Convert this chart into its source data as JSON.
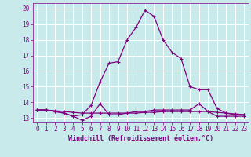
{
  "title": "",
  "xlabel": "Windchill (Refroidissement éolien,°C)",
  "ylabel": "",
  "background_color": "#c8eaea",
  "grid_color": "#ffffff",
  "line_color": "#800080",
  "x_hours": [
    0,
    1,
    2,
    3,
    4,
    5,
    6,
    7,
    8,
    9,
    10,
    11,
    12,
    13,
    14,
    15,
    16,
    17,
    18,
    19,
    20,
    21,
    22,
    23
  ],
  "temp_values": [
    13.5,
    13.5,
    13.4,
    13.3,
    13.1,
    13.2,
    13.8,
    15.3,
    16.5,
    16.6,
    18.0,
    18.8,
    19.9,
    19.5,
    18.0,
    17.2,
    16.8,
    15.0,
    14.8,
    14.8,
    13.6,
    13.3,
    13.2,
    13.2
  ],
  "windchill_values": [
    13.5,
    13.5,
    13.4,
    13.3,
    13.1,
    12.85,
    13.1,
    13.9,
    13.2,
    13.2,
    13.3,
    13.4,
    13.4,
    13.5,
    13.5,
    13.5,
    13.5,
    13.5,
    13.9,
    13.4,
    13.1,
    13.1,
    13.1,
    13.1
  ],
  "flat_values": [
    13.5,
    13.5,
    13.45,
    13.4,
    13.35,
    13.3,
    13.3,
    13.3,
    13.3,
    13.3,
    13.3,
    13.3,
    13.35,
    13.35,
    13.4,
    13.4,
    13.4,
    13.4,
    13.4,
    13.4,
    13.35,
    13.3,
    13.25,
    13.2
  ],
  "ylim": [
    12.7,
    20.35
  ],
  "xlim": [
    -0.5,
    23.5
  ],
  "yticks": [
    13,
    14,
    15,
    16,
    17,
    18,
    19,
    20
  ],
  "xticks": [
    0,
    1,
    2,
    3,
    4,
    5,
    6,
    7,
    8,
    9,
    10,
    11,
    12,
    13,
    14,
    15,
    16,
    17,
    18,
    19,
    20,
    21,
    22,
    23
  ],
  "marker": "+",
  "markersize": 3.5,
  "linewidth": 0.9,
  "font_color": "#800080",
  "tick_fontsize": 5.5,
  "label_fontsize": 6.0
}
